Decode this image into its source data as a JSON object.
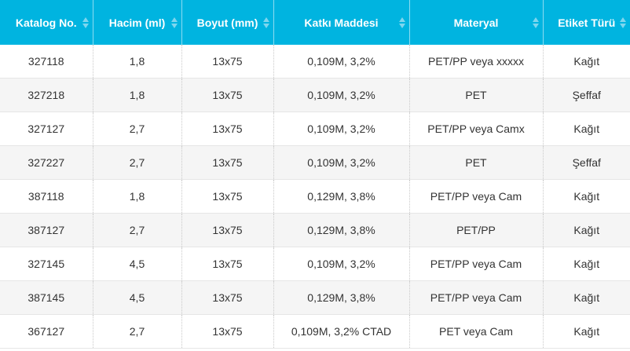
{
  "table": {
    "headers": [
      "Katalog No.",
      "Hacim (ml)",
      "Boyut (mm)",
      "Katkı Maddesi",
      "Materyal",
      "Etiket Türü"
    ],
    "rows": [
      [
        "327118",
        "1,8",
        "13x75",
        "0,109M, 3,2%",
        "PET/PP veya xxxxx",
        "Kağıt"
      ],
      [
        "327218",
        "1,8",
        "13x75",
        "0,109M, 3,2%",
        "PET",
        "Şeffaf"
      ],
      [
        "327127",
        "2,7",
        "13x75",
        "0,109M, 3,2%",
        "PET/PP veya Camx",
        "Kağıt"
      ],
      [
        "327227",
        "2,7",
        "13x75",
        "0,109M, 3,2%",
        "PET",
        "Şeffaf"
      ],
      [
        "387118",
        "1,8",
        "13x75",
        "0,129M, 3,8%",
        "PET/PP veya Cam",
        "Kağıt"
      ],
      [
        "387127",
        "2,7",
        "13x75",
        "0,129M, 3,8%",
        "PET/PP",
        "Kağıt"
      ],
      [
        "327145",
        "4,5",
        "13x75",
        "0,109M, 3,2%",
        "PET/PP veya Cam",
        "Kağıt"
      ],
      [
        "387145",
        "4,5",
        "13x75",
        "0,129M, 3,8%",
        "PET/PP veya Cam",
        "Kağıt"
      ],
      [
        "367127",
        "2,7",
        "13x75",
        "0,109M, 3,2% CTAD",
        "PET veya Cam",
        "Kağıt"
      ]
    ]
  },
  "colors": {
    "header_bg": "#00b4e0",
    "header_text": "#ffffff",
    "row_alt_bg": "#f5f5f5"
  },
  "icons": {
    "sort": "sort-up-down-icon"
  }
}
